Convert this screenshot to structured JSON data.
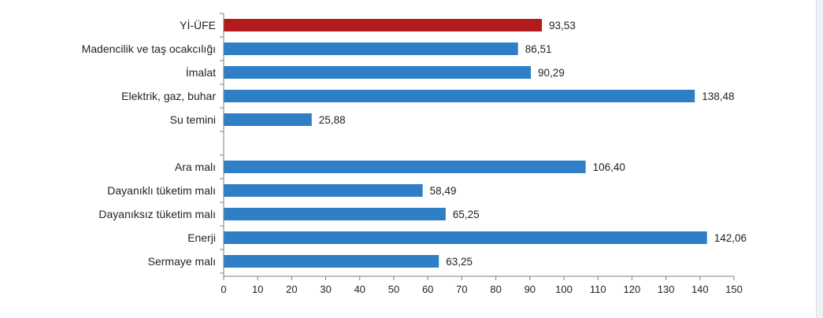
{
  "chart_data": {
    "type": "bar",
    "orientation": "horizontal",
    "title": "",
    "xlabel": "",
    "ylabel": "",
    "xlim": [
      0,
      150
    ],
    "x_ticks": [
      0,
      10,
      20,
      30,
      40,
      50,
      60,
      70,
      80,
      90,
      100,
      110,
      120,
      130,
      140,
      150
    ],
    "grid": false,
    "legend": "none",
    "categories": [
      "Yİ-ÜFE",
      "Madencilik ve taş ocakcılığı",
      "İmalat",
      "Elektrik, gaz, buhar",
      "Su temini",
      "",
      "Ara malı",
      "Dayanıklı tüketim malı",
      "Dayanıksız tüketim malı",
      "Enerji",
      "Sermaye malı"
    ],
    "values": [
      93.53,
      86.51,
      90.29,
      138.48,
      25.88,
      null,
      106.4,
      58.49,
      65.25,
      142.06,
      63.25
    ],
    "value_labels": [
      "93,53",
      "86,51",
      "90,29",
      "138,48",
      "25,88",
      "",
      "106,40",
      "58,49",
      "65,25",
      "142,06",
      "63,25"
    ],
    "colors": {
      "highlight": "#b31b1b",
      "default": "#2e7fc6",
      "axis": "#7f7f7f",
      "text": "#222222"
    },
    "highlight_index": 0
  }
}
